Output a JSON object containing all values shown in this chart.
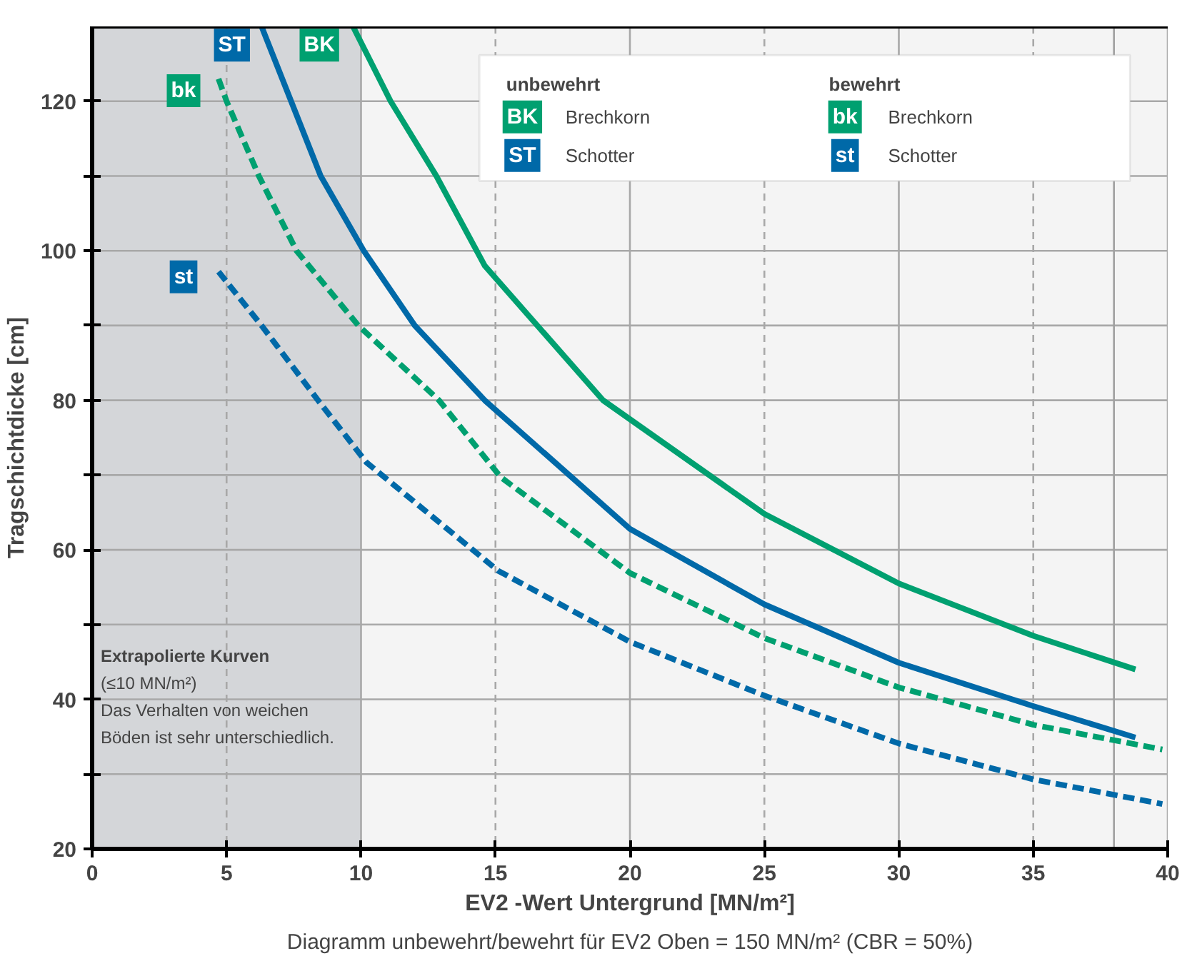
{
  "chart_data": {
    "type": "line",
    "xlabel": "EV2 -Wert Untergrund [MN/m²]",
    "subtitle": "Diagramm unbewehrt/bewehrt für EV2 Oben = 150 MN/m² (CBR = 50%)",
    "ylabel": "Tragschichtdicke [cm]",
    "xlim": [
      0,
      40
    ],
    "xticks": [
      0,
      5,
      10,
      15,
      20,
      25,
      30,
      35,
      40
    ],
    "ylim": [
      20,
      130
    ],
    "yticks": [
      20,
      {
        "value": 30,
        "label": null
      },
      40,
      {
        "value": 50,
        "label": null
      },
      60,
      {
        "value": 70,
        "label": null
      },
      80,
      {
        "value": 90,
        "label": null
      },
      100,
      {
        "value": 110,
        "label": null
      },
      120
    ],
    "grid": true,
    "legend": "top right",
    "series": [
      {
        "name": "Brechkorn",
        "color": "#00a070",
        "line_style": "solid",
        "x": [
          9.7,
          11.1,
          12.8,
          14.6,
          19,
          25,
          30,
          35,
          38.8
        ],
        "values": [
          130,
          120,
          110,
          98,
          80,
          64.8,
          55.5,
          48.5,
          44
        ]
      },
      {
        "name": "Schotter",
        "color": "#0069a8",
        "line_style": "solid",
        "x": [
          6.3,
          7.4,
          8.5,
          10.1,
          12,
          14.6,
          20,
          25,
          30,
          35,
          38.8
        ],
        "values": [
          130,
          120,
          110,
          100,
          90,
          80,
          62.8,
          52.7,
          44.9,
          39.1,
          34.9
        ]
      },
      {
        "name": "Brechkorn",
        "color": "#00a070",
        "line_style": "dashed",
        "x": [
          4.7,
          5,
          6.2,
          7.6,
          9.9,
          12.9,
          15.2,
          20,
          25,
          30,
          35,
          39.8
        ],
        "values": [
          123,
          120,
          110,
          100,
          90,
          80,
          69.7,
          56.9,
          48.2,
          41.6,
          36.6,
          33.3
        ]
      },
      {
        "name": "Schotter",
        "color": "#0069a8",
        "line_style": "dashed",
        "x": [
          4.7,
          6.3,
          8.4,
          10.2,
          15.1,
          20,
          25,
          30,
          35,
          39.8
        ],
        "values": [
          97.2,
          90,
          80,
          71.7,
          57.2,
          47.7,
          40.5,
          34.1,
          29.3,
          26
        ]
      }
    ],
    "bands": [
      {
        "axis": "x",
        "from": 0,
        "to": 10,
        "color": "#d4d6d9"
      }
    ],
    "ref_lines": [
      {
        "axis": "x",
        "value": 38,
        "color": "#a0a0a0",
        "line_style": "solid"
      }
    ],
    "annotations": [
      {
        "text": "BK",
        "x": 8.45,
        "y": 127.5
      },
      {
        "text": "ST",
        "x": 5.2,
        "y": 127.5
      },
      {
        "text": "bk",
        "x": 3.4,
        "y": 121.4
      },
      {
        "text": "st",
        "x": 3.4,
        "y": 96.5
      },
      "unbewehrt",
      "bewehrt",
      "Extrapolierte Kurven",
      "(≤10 MN/m²)",
      "Das Verhalten von weichen",
      "Böden ist sehr unterschiedlich."
    ]
  }
}
